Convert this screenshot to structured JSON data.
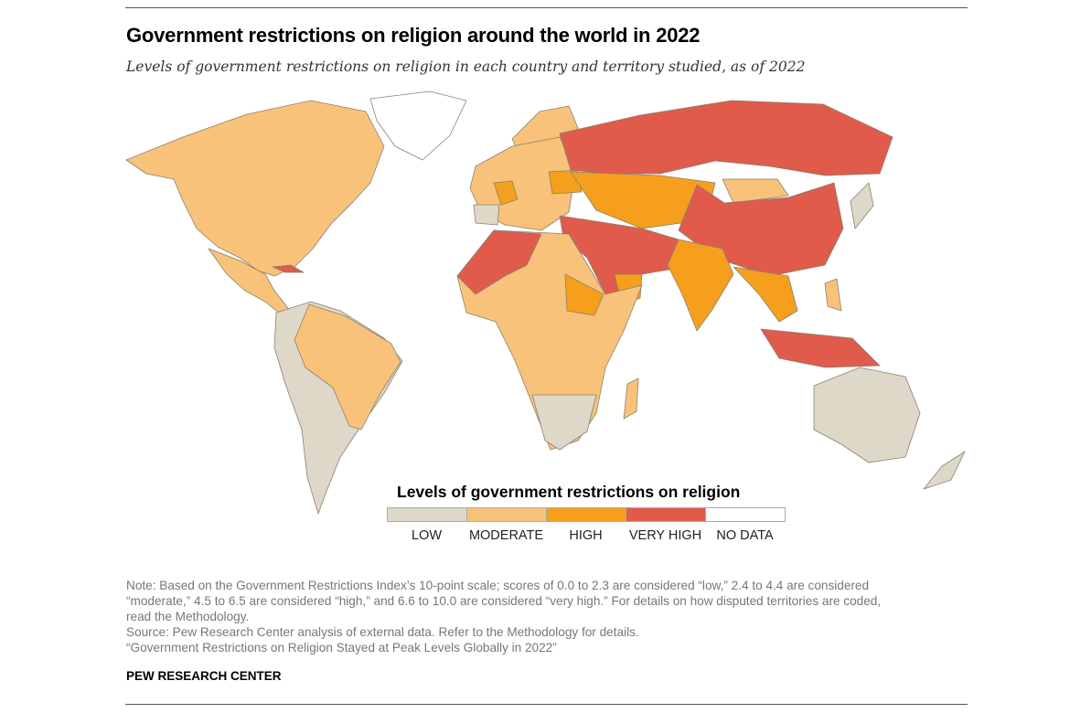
{
  "title": "Government restrictions on religion around the world in 2022",
  "subtitle": "Levels of government restrictions on religion in each country and territory studied, as of 2022",
  "legend": {
    "title": "Levels of government restrictions on religion",
    "items": [
      {
        "label": "LOW",
        "color": "#DED8C8"
      },
      {
        "label": "MODERATE",
        "color": "#F9C27A"
      },
      {
        "label": "HIGH",
        "color": "#F59F1D"
      },
      {
        "label": "VERY HIGH",
        "color": "#E05B4B"
      },
      {
        "label": "NO DATA",
        "color": "#FFFFFF"
      }
    ]
  },
  "notes": [
    "Note: Based on the Government Restrictions Index’s 10-point scale; scores of 0.0 to 2.3 are considered “low,” 2.4 to 4.4 are considered",
    "“moderate,” 4.5 to 6.5 are considered “high,” and 6.6 to 10.0 are considered “very high.” For details on how disputed territories are coded,",
    "read the Methodology.",
    "Source: Pew Research Center analysis of external data. Refer to the Methodology for details.",
    "“Government Restrictions on Religion Stayed at Peak Levels Globally in 2022”"
  ],
  "brand": "PEW RESEARCH CENTER"
}
